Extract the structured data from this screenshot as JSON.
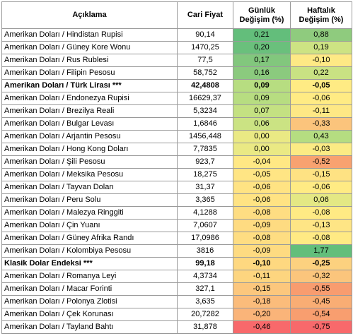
{
  "table": {
    "headers": {
      "aciklama": "Açıklama",
      "cari": "Cari Fiyat",
      "gunluk_l1": "Günlük",
      "gunluk_l2": "Değişim (%)",
      "haftalik_l1": "Haftalık",
      "haftalik_l2": "Değişim (%)"
    },
    "rows": [
      {
        "name": "Amerikan Doları / Hindistan Rupisi",
        "price": "90,14",
        "daily": "0,21",
        "weekly": "0,88",
        "daily_color": "#63be7b",
        "weekly_color": "#8fcb7e",
        "bold": false
      },
      {
        "name": "Amerikan Doları / Güney Kore Wonu",
        "price": "1470,25",
        "daily": "0,20",
        "weekly": "0,19",
        "daily_color": "#6ac07c",
        "weekly_color": "#cde383",
        "bold": false
      },
      {
        "name": "Amerikan Doları / Rus Rublesi",
        "price": "77,5",
        "daily": "0,17",
        "weekly": "-0,10",
        "daily_color": "#82c77d",
        "weekly_color": "#fee985",
        "bold": false
      },
      {
        "name": "Amerikan Doları / Filipin Pesosu",
        "price": "58,752",
        "daily": "0,16",
        "weekly": "0,22",
        "daily_color": "#8bca7e",
        "weekly_color": "#c9e283",
        "bold": false
      },
      {
        "name": "Amerikan Doları / Türk Lirası ***",
        "price": "42,4808",
        "daily": "0,09",
        "weekly": "-0,05",
        "daily_color": "#b7dd81",
        "weekly_color": "#ffeb84",
        "bold": true
      },
      {
        "name": "Amerikan Doları / Endonezya Rupisi",
        "price": "16629,37",
        "daily": "0,09",
        "weekly": "-0,06",
        "daily_color": "#b7dd81",
        "weekly_color": "#ffeb84",
        "bold": false
      },
      {
        "name": "Amerikan Doları / Brezilya Reali",
        "price": "5,3234",
        "daily": "0,07",
        "weekly": "-0,11",
        "daily_color": "#c4e182",
        "weekly_color": "#fee885",
        "bold": false
      },
      {
        "name": "Amerikan Doları / Bulgar Levası",
        "price": "1,6846",
        "daily": "0,06",
        "weekly": "-0,33",
        "daily_color": "#cbe383",
        "weekly_color": "#fbc47c",
        "bold": false
      },
      {
        "name": "Amerikan Doları / Arjantin Pesosu",
        "price": "1456,448",
        "daily": "0,00",
        "weekly": "0,43",
        "daily_color": "#eae984",
        "weekly_color": "#b5dd81",
        "bold": false
      },
      {
        "name": "Amerikan Doları / Hong Kong Doları",
        "price": "7,7835",
        "daily": "0,00",
        "weekly": "-0,03",
        "daily_color": "#eae984",
        "weekly_color": "#fbeb84",
        "bold": false
      },
      {
        "name": "Amerikan Doları / Şili Pesosu",
        "price": "923,7",
        "daily": "-0,04",
        "weekly": "-0,52",
        "daily_color": "#ffe884",
        "weekly_color": "#f8a270",
        "bold": false
      },
      {
        "name": "Amerikan Doları / Meksika Pesosu",
        "price": "18,275",
        "daily": "-0,05",
        "weekly": "-0,15",
        "daily_color": "#ffe584",
        "weekly_color": "#fee283",
        "bold": false
      },
      {
        "name": "Amerikan Doları / Tayvan Doları",
        "price": "31,37",
        "daily": "-0,06",
        "weekly": "-0,06",
        "daily_color": "#ffe383",
        "weekly_color": "#ffeb84",
        "bold": false
      },
      {
        "name": "Amerikan Doları / Peru Solu",
        "price": "3,365",
        "daily": "-0,06",
        "weekly": "0,06",
        "daily_color": "#ffe383",
        "weekly_color": "#e4e884",
        "bold": false
      },
      {
        "name": "Amerikan Doları / Malezya Ringgiti",
        "price": "4,1288",
        "daily": "-0,08",
        "weekly": "-0,08",
        "daily_color": "#fedd82",
        "weekly_color": "#ffea84",
        "bold": false
      },
      {
        "name": "Amerikan Doları / Çin Yuanı",
        "price": "7,0607",
        "daily": "-0,09",
        "weekly": "-0,13",
        "daily_color": "#fedb81",
        "weekly_color": "#fee585",
        "bold": false
      },
      {
        "name": "Amerikan Doları / Güney Afrika Randı",
        "price": "17,0986",
        "daily": "-0,08",
        "weekly": "-0,08",
        "daily_color": "#fedd82",
        "weekly_color": "#ffea84",
        "bold": false
      },
      {
        "name": "Amerikan Doları / Kolombiya Pesosu",
        "price": "3816",
        "daily": "-0,09",
        "weekly": "1,77",
        "daily_color": "#fedb81",
        "weekly_color": "#63be7b",
        "bold": false
      },
      {
        "name": "Klasik Dolar Endeksi ***",
        "price": "99,18",
        "daily": "-0,10",
        "weekly": "-0,25",
        "daily_color": "#fed880",
        "weekly_color": "#fcd17f",
        "bold": true
      },
      {
        "name": "Amerikan Doları / Romanya Leyi",
        "price": "4,3734",
        "daily": "-0,11",
        "weekly": "-0,32",
        "daily_color": "#fdd57f",
        "weekly_color": "#fbc57c",
        "bold": false
      },
      {
        "name": "Amerikan Doları / Macar Forinti",
        "price": "327,1",
        "daily": "-0,15",
        "weekly": "-0,55",
        "daily_color": "#fcc77d",
        "weekly_color": "#f89c6f",
        "bold": false
      },
      {
        "name": "Amerikan Doları / Polonya Zlotisi",
        "price": "3,635",
        "daily": "-0,18",
        "weekly": "-0,45",
        "daily_color": "#fbbc7b",
        "weekly_color": "#f9ad74",
        "bold": false
      },
      {
        "name": "Amerikan Doları / Çek Korunası",
        "price": "20,7282",
        "daily": "-0,20",
        "weekly": "-0,54",
        "daily_color": "#fab479",
        "weekly_color": "#f89e6f",
        "bold": false
      },
      {
        "name": "Amerikan Doları / Tayland Bahtı",
        "price": "31,878",
        "daily": "-0,46",
        "weekly": "-0,75",
        "daily_color": "#f8696b",
        "weekly_color": "#f8696b",
        "bold": false
      }
    ]
  }
}
